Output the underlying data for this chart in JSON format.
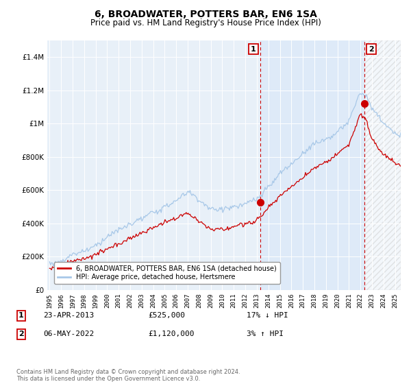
{
  "title": "6, BROADWATER, POTTERS BAR, EN6 1SA",
  "subtitle": "Price paid vs. HM Land Registry's House Price Index (HPI)",
  "legend_line1": "6, BROADWATER, POTTERS BAR, EN6 1SA (detached house)",
  "legend_line2": "HPI: Average price, detached house, Hertsmere",
  "annotation1_date": "23-APR-2013",
  "annotation1_price": "£525,000",
  "annotation1_hpi": "17% ↓ HPI",
  "annotation2_date": "06-MAY-2022",
  "annotation2_price": "£1,120,000",
  "annotation2_hpi": "3% ↑ HPI",
  "footer": "Contains HM Land Registry data © Crown copyright and database right 2024.\nThis data is licensed under the Open Government Licence v3.0.",
  "sale1_year": 2013.31,
  "sale1_value": 525000,
  "sale2_year": 2022.35,
  "sale2_value": 1120000,
  "red_color": "#cc0000",
  "blue_color": "#a8c8e8",
  "dashed_color": "#cc0000",
  "background_color": "#e8f0f8",
  "shaded_color": "#ddeaf8",
  "ylim": [
    0,
    1500000
  ],
  "xlim_start": 1995,
  "xlim_end": 2025.5,
  "yticks": [
    0,
    200000,
    400000,
    600000,
    800000,
    1000000,
    1200000,
    1400000
  ],
  "title_fontsize": 10,
  "subtitle_fontsize": 8.5
}
